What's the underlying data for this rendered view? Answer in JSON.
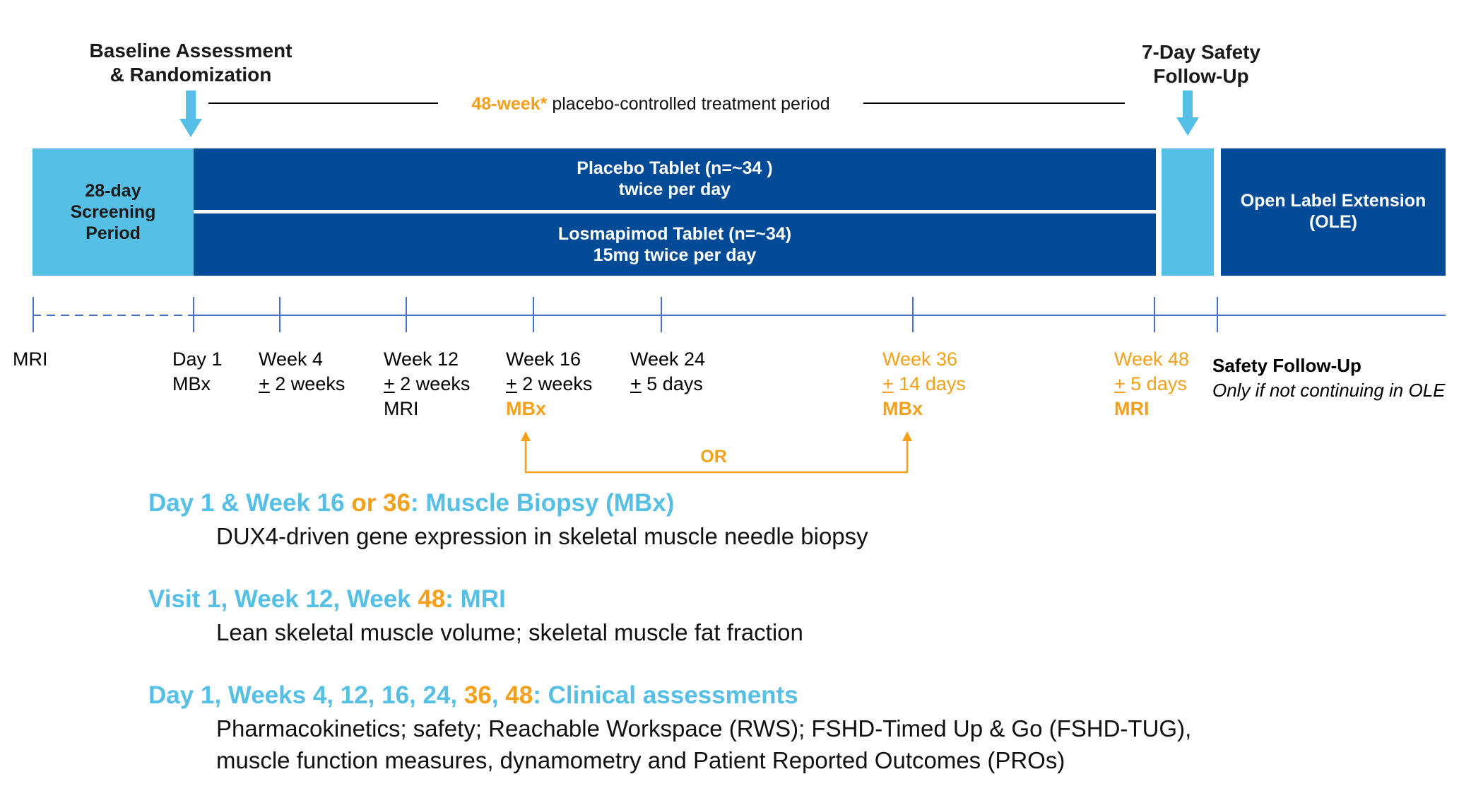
{
  "header": {
    "baseline_line1": "Baseline Assessment",
    "baseline_line2": "& Randomization",
    "period_highlight": "48-week*",
    "period_rest": "placebo-controlled  treatment period",
    "safety_line1": "7-Day Safety",
    "safety_line2": "Follow-Up"
  },
  "bars": {
    "screening": [
      "28-day",
      "Screening",
      "Period"
    ],
    "placebo": [
      "Placebo Tablet (n=~34 )",
      "twice per day"
    ],
    "losmapimod": [
      "Losmapimod Tablet (n=~34)",
      "15mg twice per day"
    ],
    "ole": [
      "Open Label Extension",
      "(OLE)"
    ]
  },
  "timeline": {
    "mri": "MRI",
    "day1": [
      "Day 1",
      "MBx"
    ],
    "week4": [
      "Week 4",
      "+",
      " 2 weeks"
    ],
    "week12": [
      "Week 12",
      "+",
      " 2 weeks",
      "MRI"
    ],
    "week16": [
      "Week 16",
      "+",
      " 2 weeks",
      "MBx"
    ],
    "week24": [
      "Week 24",
      "+",
      " 5 days"
    ],
    "week36": [
      "Week 36",
      "+",
      " 14 days",
      "MBx"
    ],
    "week48": [
      "Week 48",
      "+",
      " 5 days",
      "MRI"
    ],
    "safety_title": "Safety Follow-Up",
    "safety_note": "Only if not continuing in OLE",
    "or_label": "OR"
  },
  "sections": {
    "s1": {
      "h_a": "Day 1 & Week 16 ",
      "h_b": "or",
      "h_c": " ",
      "h_d": "36",
      "h_e": ": Muscle Biopsy (MBx)",
      "body": "DUX4-driven gene expression in skeletal muscle needle biopsy"
    },
    "s2": {
      "h_a": "Visit 1, Week 12, Week ",
      "h_b": "48",
      "h_c": ": MRI",
      "body": "Lean skeletal muscle volume; skeletal muscle fat fraction"
    },
    "s3": {
      "h_a": "Day 1, Weeks 4, 12, 16, 24, ",
      "h_b": "36",
      "h_c": ", ",
      "h_d": "48",
      "h_e": ": Clinical assessments",
      "body1": "Pharmacokinetics; safety;  Reachable Workspace (RWS); FSHD-Timed Up & Go (FSHD-TUG),",
      "body2": "muscle function measures, dynamometry and Patient Reported Outcomes (PROs)"
    }
  },
  "colors": {
    "dark_blue": "#034a97",
    "light_blue": "#56bfe6",
    "orange": "#f5a01a",
    "axis_blue": "#4472c4"
  }
}
